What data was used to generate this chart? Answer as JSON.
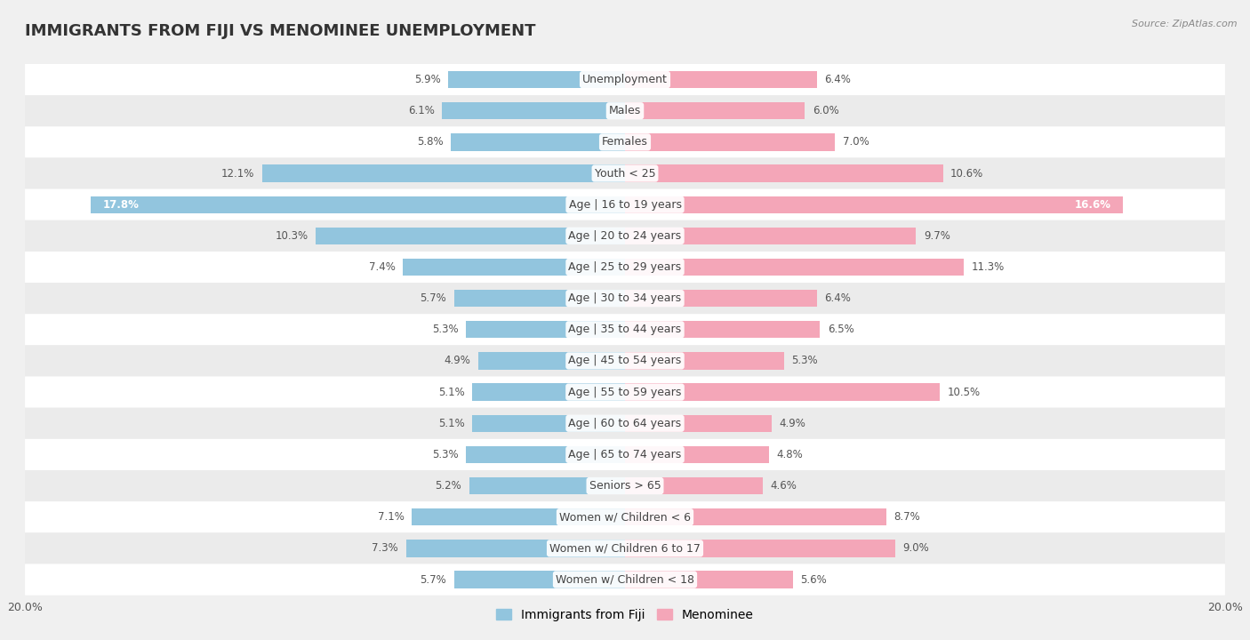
{
  "title": "IMMIGRANTS FROM FIJI VS MENOMINEE UNEMPLOYMENT",
  "source": "Source: ZipAtlas.com",
  "categories": [
    "Unemployment",
    "Males",
    "Females",
    "Youth < 25",
    "Age | 16 to 19 years",
    "Age | 20 to 24 years",
    "Age | 25 to 29 years",
    "Age | 30 to 34 years",
    "Age | 35 to 44 years",
    "Age | 45 to 54 years",
    "Age | 55 to 59 years",
    "Age | 60 to 64 years",
    "Age | 65 to 74 years",
    "Seniors > 65",
    "Women w/ Children < 6",
    "Women w/ Children 6 to 17",
    "Women w/ Children < 18"
  ],
  "left_values": [
    5.9,
    6.1,
    5.8,
    12.1,
    17.8,
    10.3,
    7.4,
    5.7,
    5.3,
    4.9,
    5.1,
    5.1,
    5.3,
    5.2,
    7.1,
    7.3,
    5.7
  ],
  "right_values": [
    6.4,
    6.0,
    7.0,
    10.6,
    16.6,
    9.7,
    11.3,
    6.4,
    6.5,
    5.3,
    10.5,
    4.9,
    4.8,
    4.6,
    8.7,
    9.0,
    5.6
  ],
  "left_color": "#92c5de",
  "right_color": "#f4a6b8",
  "left_label": "Immigrants from Fiji",
  "right_label": "Menominee",
  "xlim": 20.0,
  "bg_light": "#f5f5f5",
  "bg_dark": "#e8e8e8",
  "row_bg_light": "#fafafa",
  "row_bg_dark": "#efefef",
  "title_fontsize": 13,
  "label_fontsize": 9,
  "value_fontsize": 8.5,
  "legend_fontsize": 10,
  "inside_threshold": 14.0
}
